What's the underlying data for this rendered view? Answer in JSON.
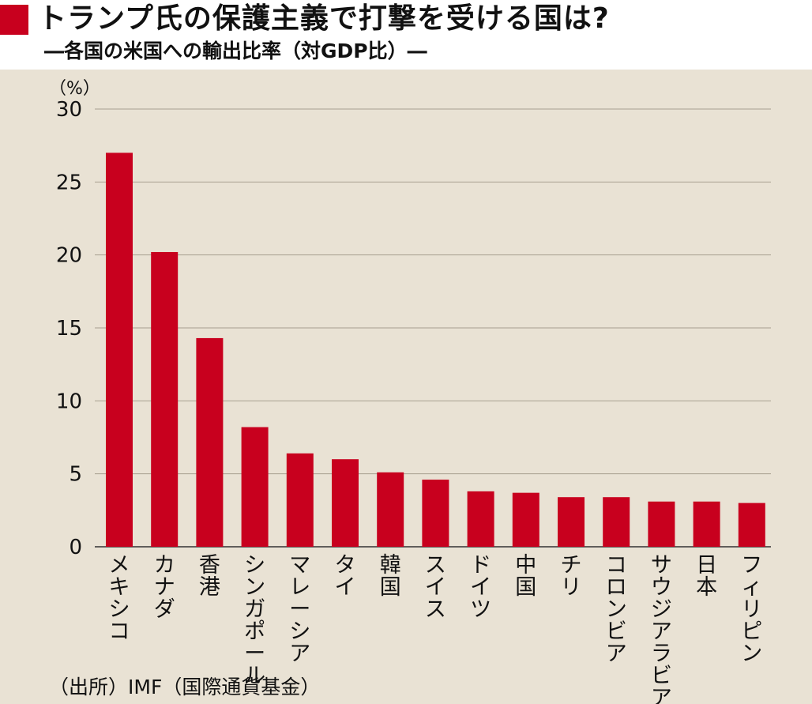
{
  "header": {
    "title": "トランプ氏の保護主義で打撃を受ける国は?",
    "subtitle": "―各国の米国への輸出比率（対GDP比）―"
  },
  "colors": {
    "accent": "#c8001e",
    "bar": "#c8001e",
    "panel_background": "#e9e2d4",
    "gridline": "#a89f90"
  },
  "chart_data": {
    "type": "bar",
    "title": "トランプ氏の保護主義で打撃を受ける国は?",
    "subtitle": "―各国の米国への輸出比率（対GDP比）―",
    "ylabel": "（%）",
    "xlabel": "",
    "ylim": [
      0,
      30
    ],
    "yticks": [
      0,
      5,
      10,
      15,
      20,
      25,
      30
    ],
    "grid": true,
    "categories": [
      "メキシコ",
      "カナダ",
      "香港",
      "シンガポール",
      "マレーシア",
      "タイ",
      "韓国",
      "スイス",
      "ドイツ",
      "中国",
      "チリ",
      "コロンビア",
      "サウジアラビア",
      "日本",
      "フィリピン"
    ],
    "values": [
      27.0,
      20.2,
      14.3,
      8.2,
      6.4,
      6.0,
      5.1,
      4.6,
      3.8,
      3.7,
      3.4,
      3.4,
      3.1,
      3.1,
      3.0
    ]
  },
  "footer": {
    "source": "（出所）IMF（国際通貨基金）"
  }
}
